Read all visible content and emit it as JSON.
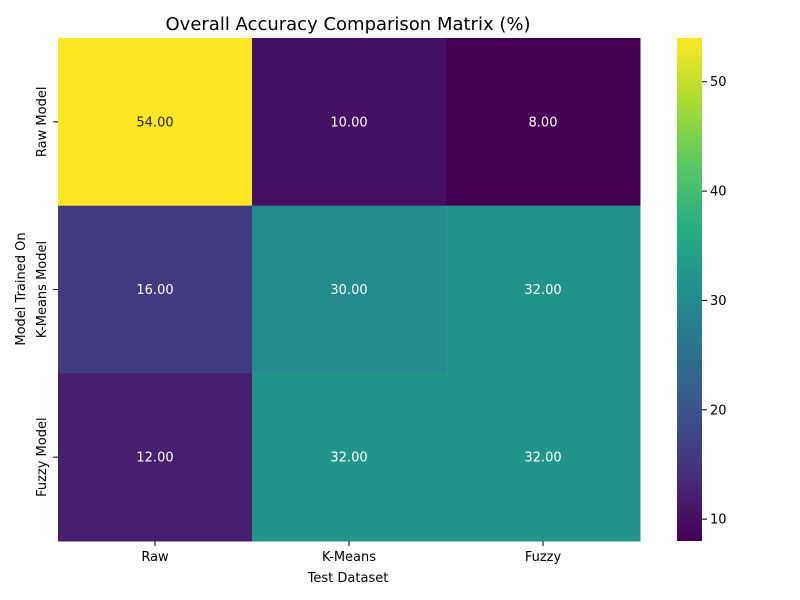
{
  "chart_data": {
    "type": "heatmap",
    "title": "Overall Accuracy Comparison Matrix (%)",
    "xlabel": "Test Dataset",
    "ylabel": "Model Trained On",
    "x_categories": [
      "Raw",
      "K-Means",
      "Fuzzy"
    ],
    "y_categories": [
      "Raw Model",
      "K-Means Model",
      "Fuzzy Model"
    ],
    "values": [
      [
        54.0,
        10.0,
        8.0
      ],
      [
        16.0,
        30.0,
        32.0
      ],
      [
        12.0,
        32.0,
        32.0
      ]
    ],
    "value_format": "2 decimals",
    "colormap": "viridis",
    "colorbar": {
      "range": [
        8,
        54
      ],
      "ticks": [
        10,
        20,
        30,
        40,
        50
      ]
    },
    "grid": false
  }
}
